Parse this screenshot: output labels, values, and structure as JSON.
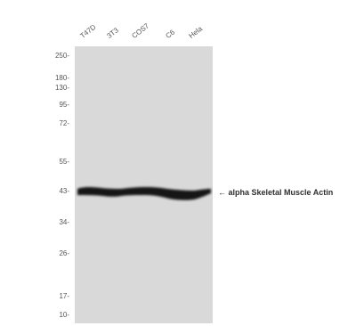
{
  "lanes": [
    "T47D",
    "3T3",
    "COS7",
    "C6",
    "Hela"
  ],
  "markers": [
    "250-",
    "180-",
    "130-",
    "95-",
    "72-",
    "55-",
    "43-",
    "34-",
    "26-",
    "17-",
    "10-"
  ],
  "band_label": "← alpha Skeletal Muscle Actin",
  "colors": {
    "membrane": "#d9d9d9",
    "band": "#141414"
  }
}
